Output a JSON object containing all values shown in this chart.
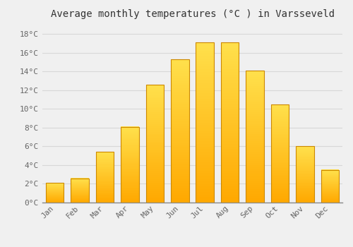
{
  "months": [
    "Jan",
    "Feb",
    "Mar",
    "Apr",
    "May",
    "Jun",
    "Jul",
    "Aug",
    "Sep",
    "Oct",
    "Nov",
    "Dec"
  ],
  "values": [
    2.1,
    2.6,
    5.4,
    8.1,
    12.6,
    15.3,
    17.1,
    17.1,
    14.1,
    10.5,
    6.0,
    3.5
  ],
  "title": "Average monthly temperatures (°C ) in Varsseveld",
  "ylim": [
    0,
    19
  ],
  "yticks": [
    0,
    2,
    4,
    6,
    8,
    10,
    12,
    14,
    16,
    18
  ],
  "ytick_labels": [
    "0°C",
    "2°C",
    "4°C",
    "6°C",
    "8°C",
    "10°C",
    "12°C",
    "14°C",
    "16°C",
    "18°C"
  ],
  "background_color": "#f0f0f0",
  "grid_color": "#d8d8d8",
  "title_fontsize": 10,
  "tick_fontsize": 8,
  "bar_color_bottom": "#F5A800",
  "bar_color_top": "#FFD750",
  "bar_edge_color": "#CC8800",
  "bar_width": 0.72
}
